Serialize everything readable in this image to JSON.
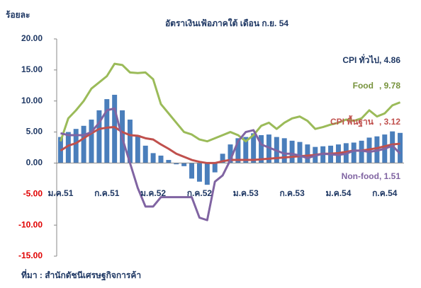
{
  "chart_data": {
    "type": "combo",
    "title": "อัตราเงินเฟ้อภาคใต้ เดือน ก.ย. 54",
    "y_label": "ร้อยละ",
    "source": "ที่มา : สำนักดัชนีเศรษฐกิจการค้า",
    "categories": [
      "ม.ค.51",
      null,
      null,
      null,
      null,
      null,
      "ก.ค.51",
      null,
      null,
      null,
      null,
      null,
      "ม.ค.52",
      null,
      null,
      null,
      null,
      null,
      "ก.ค.52",
      null,
      null,
      null,
      null,
      null,
      "ม.ค.53",
      null,
      null,
      null,
      null,
      null,
      "ก.ค.53",
      null,
      null,
      null,
      null,
      null,
      "ม.ค.54",
      null,
      null,
      null,
      null,
      null,
      "ก.ค.54",
      null,
      null
    ],
    "ylim": [
      -15,
      20
    ],
    "yticks": [
      {
        "value": -15,
        "label": "-15.00"
      },
      {
        "value": -10,
        "label": "-10.00"
      },
      {
        "value": -5,
        "label": "-5.00"
      },
      {
        "value": 0,
        "label": "0.00"
      },
      {
        "value": 5,
        "label": "5.00"
      },
      {
        "value": 10,
        "label": "10.00"
      },
      {
        "value": 15,
        "label": "15.00"
      },
      {
        "value": 20,
        "label": "20.00"
      }
    ],
    "series": [
      {
        "name": "CPI ทั่วไป",
        "type": "bar",
        "color": "#4a7ebb",
        "label_color": "#1f3864",
        "end_label": ", 4.86",
        "values": [
          4.2,
          5.0,
          5.5,
          6.0,
          7.0,
          8.5,
          10.3,
          11.0,
          8.5,
          7.0,
          4.5,
          2.8,
          1.6,
          1.2,
          0.5,
          -0.2,
          -0.5,
          -2.5,
          -3.0,
          -3.5,
          -1.5,
          1.5,
          3.0,
          4.0,
          4.2,
          4.8,
          4.5,
          4.6,
          4.2,
          4.0,
          3.6,
          3.4,
          3.0,
          2.6,
          2.7,
          2.8,
          3.0,
          3.2,
          3.3,
          3.6,
          4.1,
          4.3,
          4.6,
          5.1,
          4.86
        ]
      },
      {
        "name": "Food",
        "type": "line",
        "color": "#9bbb59",
        "label_color": "#77933c",
        "end_label": ", 9.78",
        "values": [
          3.5,
          7.2,
          8.5,
          10,
          12,
          13,
          14,
          16,
          15.8,
          14.6,
          14.5,
          14.6,
          13.5,
          9.5,
          8,
          6.5,
          5,
          4.6,
          3.8,
          3.5,
          4,
          4.5,
          5,
          4.5,
          3.5,
          4.5,
          6,
          6.5,
          5.5,
          6.5,
          7.2,
          7.5,
          6.8,
          5.5,
          5.8,
          6.2,
          6.5,
          7,
          6.8,
          7.2,
          8.5,
          7.5,
          8,
          9.3,
          9.78
        ]
      },
      {
        "name": "CPI พื้นฐาน",
        "type": "line",
        "color": "#c0504d",
        "label_color": "#c0504d",
        "end_label": ", 3.12",
        "values": [
          2,
          2.8,
          3.2,
          4,
          4.8,
          5.5,
          5.7,
          5.8,
          5,
          4.5,
          4.4,
          4,
          3.8,
          3,
          2.3,
          1.5,
          1,
          0.5,
          0.2,
          0,
          0,
          0.3,
          0.5,
          0.5,
          0.5,
          0.5,
          0.6,
          0.7,
          0.8,
          0.9,
          1,
          1.1,
          1.2,
          1.3,
          1.5,
          1.5,
          1.6,
          1.8,
          2,
          2,
          2.2,
          2.4,
          2.7,
          3,
          3.12
        ]
      },
      {
        "name": "Non-food",
        "type": "line",
        "color": "#8064a2",
        "label_color": "#8064a2",
        "end_label": ", 1.51",
        "values": [
          4.8,
          4.5,
          4.5,
          4.5,
          5,
          6.5,
          8.5,
          8.8,
          4,
          0,
          -4,
          -7,
          -7,
          -5.5,
          -5.5,
          -5.5,
          -5.5,
          -5.5,
          -8.8,
          -9.2,
          -3,
          -2,
          0.5,
          3.5,
          5,
          5.3,
          3,
          2.5,
          2,
          1.5,
          1.5,
          1.2,
          0.8,
          1.2,
          1.5,
          1.4,
          1.3,
          1.5,
          2,
          2,
          1.8,
          2,
          2.3,
          2.8,
          1.51
        ]
      }
    ]
  }
}
